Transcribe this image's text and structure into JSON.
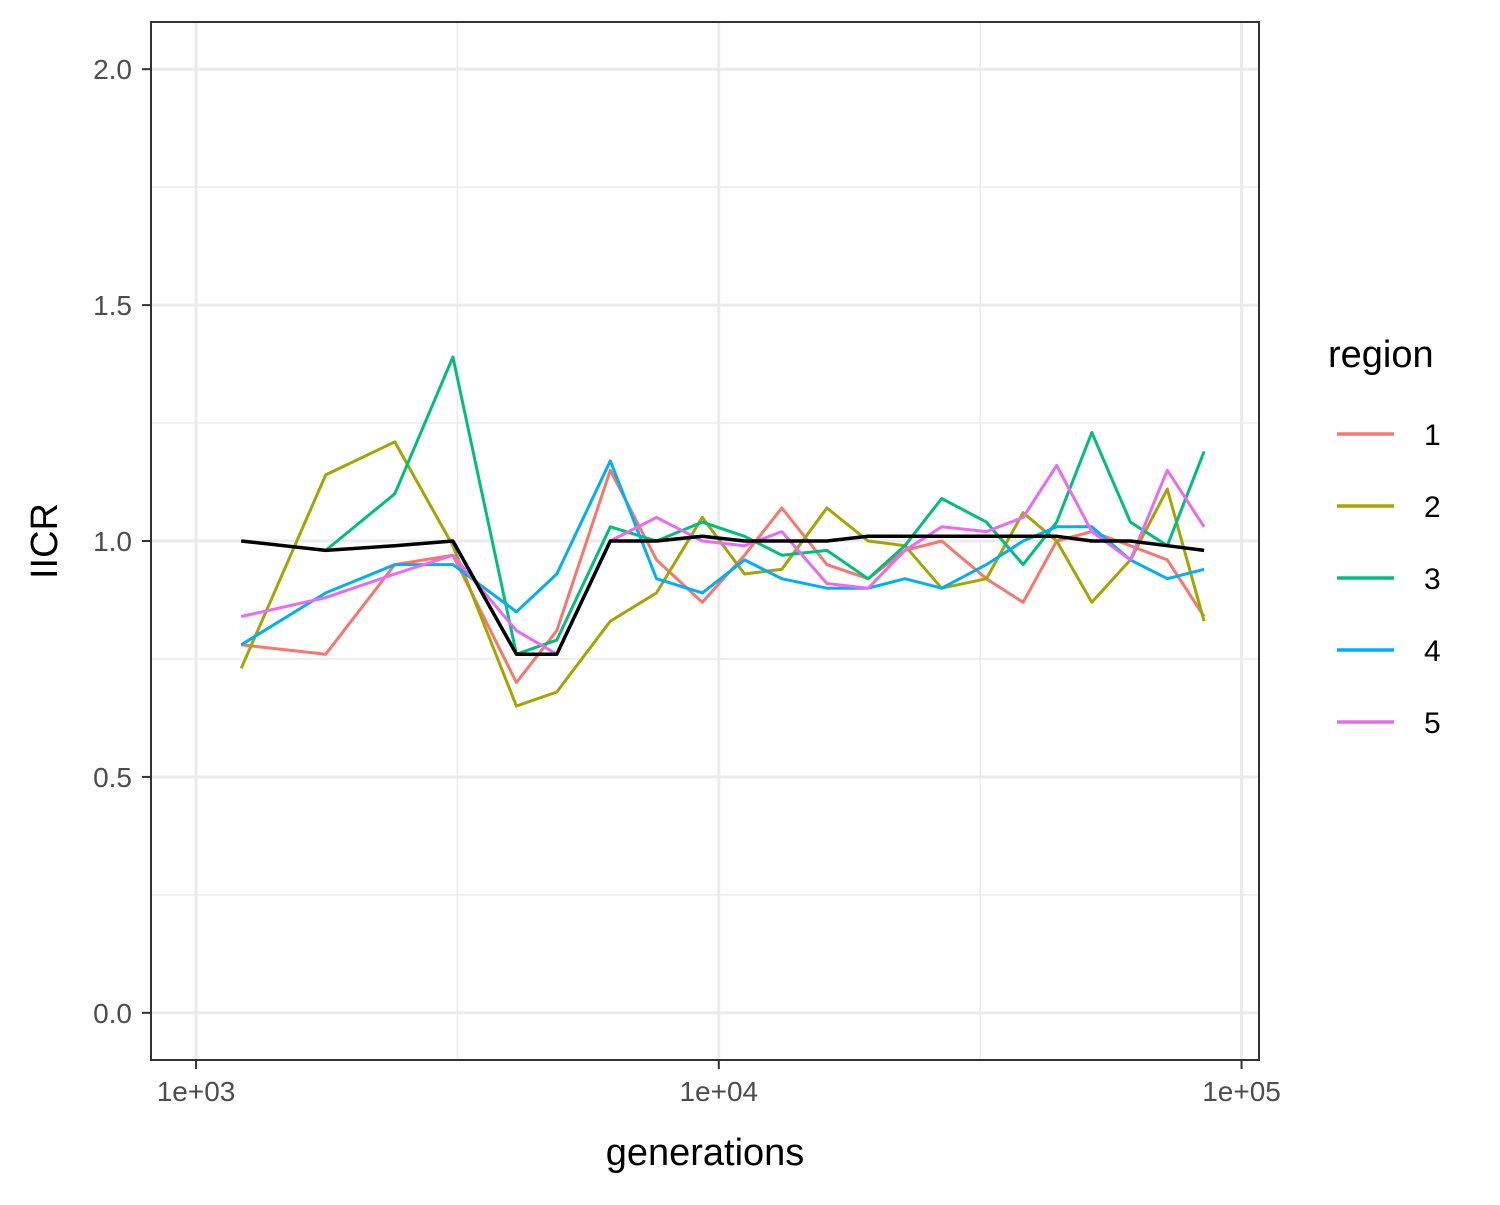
{
  "chart_data": {
    "type": "line",
    "xlabel": "generations",
    "ylabel": "IICR",
    "x_scale": "log10",
    "xlim": [
      820,
      108000
    ],
    "ylim": [
      -0.1,
      2.1
    ],
    "x_ticks": [
      {
        "value": 1000,
        "label": "1e+03"
      },
      {
        "value": 10000,
        "label": "1e+04"
      },
      {
        "value": 100000,
        "label": "1e+05"
      }
    ],
    "y_ticks": [
      {
        "value": 0.0,
        "label": "0.0"
      },
      {
        "value": 0.5,
        "label": "0.5"
      },
      {
        "value": 1.0,
        "label": "1.0"
      },
      {
        "value": 1.5,
        "label": "1.5"
      },
      {
        "value": 2.0,
        "label": "2.0"
      }
    ],
    "grid": true,
    "legend": {
      "title": "region",
      "position": "right"
    },
    "series": [
      {
        "name": "1",
        "color": "#F8766D",
        "x": [
          1220,
          1770,
          2400,
          3100,
          4100,
          4900,
          6200,
          7600,
          9300,
          11200,
          13200,
          16100,
          19300,
          22700,
          26700,
          32500,
          38200,
          44300,
          51700,
          61300,
          72100,
          84800
        ],
        "y": [
          0.78,
          0.76,
          0.95,
          0.97,
          0.7,
          0.81,
          1.15,
          0.96,
          0.87,
          0.97,
          1.07,
          0.95,
          0.92,
          0.98,
          1.0,
          0.92,
          0.87,
          1.0,
          1.02,
          0.99,
          0.96,
          0.84
        ]
      },
      {
        "name": "2",
        "color": "#A3A500",
        "x": [
          1220,
          1770,
          2400,
          3100,
          4100,
          4900,
          6200,
          7600,
          9300,
          11200,
          13200,
          16100,
          19300,
          22700,
          26700,
          32500,
          38200,
          44300,
          51700,
          61300,
          72100,
          84800
        ],
        "y": [
          0.73,
          1.14,
          1.21,
          0.99,
          0.65,
          0.68,
          0.83,
          0.89,
          1.05,
          0.93,
          0.94,
          1.07,
          1.0,
          0.99,
          0.9,
          0.92,
          1.06,
          1.0,
          0.87,
          0.96,
          1.11,
          0.83
        ]
      },
      {
        "name": "3",
        "color": "#00BF7D",
        "x": [
          1770,
          2400,
          3100,
          4100,
          4900,
          6200,
          7600,
          9300,
          11200,
          13200,
          16100,
          19300,
          22700,
          26700,
          32500,
          38200,
          44300,
          51700,
          61300,
          72100,
          84800
        ],
        "y": [
          0.98,
          1.1,
          1.39,
          0.76,
          0.79,
          1.03,
          1.0,
          1.04,
          1.01,
          0.97,
          0.98,
          0.92,
          0.99,
          1.09,
          1.04,
          0.95,
          1.04,
          1.23,
          1.04,
          0.99,
          1.19
        ]
      },
      {
        "name": "4",
        "color": "#00B0F6",
        "x": [
          1220,
          1770,
          2400,
          3100,
          4100,
          4900,
          6200,
          7600,
          9300,
          11200,
          13200,
          16100,
          19300,
          22700,
          26700,
          32500,
          38200,
          44300,
          51700,
          61300,
          72100,
          84800
        ],
        "y": [
          0.78,
          0.89,
          0.95,
          0.95,
          0.85,
          0.93,
          1.17,
          0.92,
          0.89,
          0.96,
          0.92,
          0.9,
          0.9,
          0.92,
          0.9,
          0.95,
          1.0,
          1.03,
          1.03,
          0.96,
          0.92,
          0.94
        ]
      },
      {
        "name": "5",
        "color": "#E76BF3",
        "x": [
          1220,
          1770,
          2400,
          3100,
          4100,
          4900,
          6200,
          7600,
          9300,
          11200,
          13200,
          16100,
          19300,
          22700,
          26700,
          32500,
          38200,
          44300,
          51700,
          61300,
          72100,
          84800
        ],
        "y": [
          0.84,
          0.88,
          0.93,
          0.97,
          0.81,
          0.76,
          1.0,
          1.05,
          1.0,
          0.99,
          1.02,
          0.91,
          0.9,
          0.98,
          1.03,
          1.02,
          1.05,
          1.16,
          1.02,
          0.96,
          1.15,
          1.03
        ]
      },
      {
        "color": "#000000",
        "x": [
          1220,
          1770,
          2400,
          3100,
          4100,
          4900,
          6200,
          7600,
          9300,
          11200,
          13200,
          16100,
          19300,
          22700,
          26700,
          32500,
          38200,
          44300,
          51700,
          61300,
          72100,
          84800
        ],
        "y": [
          1.0,
          0.98,
          0.99,
          1.0,
          0.76,
          0.76,
          1.0,
          1.0,
          1.01,
          1.0,
          1.0,
          1.0,
          1.01,
          1.01,
          1.01,
          1.01,
          1.01,
          1.01,
          1.0,
          1.0,
          0.99,
          0.98
        ]
      }
    ]
  }
}
